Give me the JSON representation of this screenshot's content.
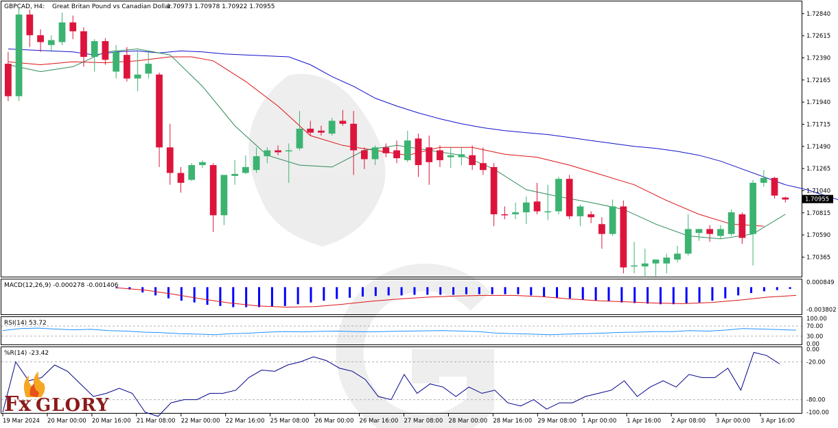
{
  "header": {
    "symbol": "GBPCAD, H4:",
    "description": "Great Britan Pound vs Canadian Dollar",
    "ohlc": "1.70973 1.70978 1.70922 1.70955"
  },
  "logo": {
    "text_fx": "Fx",
    "text_glory": "GLORY"
  },
  "colors": {
    "bull": "#3cb371",
    "bear": "#dc143c",
    "ma_slow": "#1010cc",
    "ma_mid": "#dd1111",
    "ma_fast": "#2e8b57",
    "macd_hist": "#0000ff",
    "macd_signal": "#dd1111",
    "rsi": "#1e90ff",
    "wpr": "#00008b",
    "price_tag_bg": "#000000",
    "grid": "#b0b0b0"
  },
  "chart_data": [
    {
      "type": "candlestick",
      "name": "price",
      "title": "GBPCAD, H4",
      "y_ticks": [
        "1.72840",
        "1.72615",
        "1.72390",
        "1.72165",
        "1.71940",
        "1.71715",
        "1.71490",
        "1.71265",
        "1.71040",
        "1.70815",
        "1.70590",
        "1.70365"
      ],
      "ylim": [
        1.7018,
        1.7295
      ],
      "current_price": "1.70955",
      "x_tick_labels": [
        "19 Mar 2024",
        "20 Mar 00:00",
        "20 Mar 16:00",
        "21 Mar 08:00",
        "22 Mar 00:00",
        "22 Mar 16:00",
        "25 Mar 08:00",
        "26 Mar 00:00",
        "26 Mar 16:00",
        "27 Mar 08:00",
        "28 Mar 00:00",
        "28 Mar 16:00",
        "29 Mar 08:00",
        "1 Apr 00:00",
        "1 Apr 16:00",
        "2 Apr 08:00",
        "3 Apr 00:00",
        "3 Apr 16:00"
      ],
      "candles": [
        [
          1.7233,
          1.7245,
          1.7195,
          1.72
        ],
        [
          1.72,
          1.729,
          1.7195,
          1.7283
        ],
        [
          1.7283,
          1.7288,
          1.725,
          1.7262
        ],
        [
          1.7262,
          1.7268,
          1.7245,
          1.7255
        ],
        [
          1.7252,
          1.7262,
          1.7245,
          1.7257
        ],
        [
          1.7255,
          1.7285,
          1.7252,
          1.7275
        ],
        [
          1.7275,
          1.7282,
          1.7258,
          1.7266
        ],
        [
          1.7266,
          1.727,
          1.723,
          1.724
        ],
        [
          1.724,
          1.7258,
          1.7225,
          1.7256
        ],
        [
          1.7256,
          1.7259,
          1.7232,
          1.7237
        ],
        [
          1.7225,
          1.7252,
          1.7218,
          1.7245
        ],
        [
          1.7242,
          1.725,
          1.7215,
          1.7218
        ],
        [
          1.7218,
          1.7245,
          1.7205,
          1.7222
        ],
        [
          1.7223,
          1.7245,
          1.7218,
          1.7233
        ],
        [
          1.7222,
          1.7224,
          1.7128,
          1.7148
        ],
        [
          1.7148,
          1.7172,
          1.711,
          1.7122
        ],
        [
          1.7122,
          1.7128,
          1.7102,
          1.7112
        ],
        [
          1.7115,
          1.7132,
          1.7114,
          1.713
        ],
        [
          1.713,
          1.7135,
          1.7127,
          1.7133
        ],
        [
          1.713,
          1.7132,
          1.7062,
          1.7079
        ],
        [
          1.7079,
          1.712,
          1.7069,
          1.712
        ],
        [
          1.7119,
          1.7135,
          1.711,
          1.7121
        ],
        [
          1.7122,
          1.714,
          1.7121,
          1.7128
        ],
        [
          1.7125,
          1.7148,
          1.7122,
          1.7139
        ],
        [
          1.7139,
          1.7148,
          1.7132,
          1.7145
        ],
        [
          1.7145,
          1.715,
          1.714,
          1.7143
        ],
        [
          1.7145,
          1.7152,
          1.7112,
          1.7145
        ],
        [
          1.7147,
          1.7185,
          1.7145,
          1.7167
        ],
        [
          1.7167,
          1.7175,
          1.716,
          1.7163
        ],
        [
          1.7165,
          1.717,
          1.716,
          1.7163
        ],
        [
          1.7162,
          1.7178,
          1.716,
          1.7175
        ],
        [
          1.7175,
          1.7186,
          1.717,
          1.7172
        ],
        [
          1.7172,
          1.7185,
          1.712,
          1.7145
        ],
        [
          1.7145,
          1.7148,
          1.7126,
          1.7136
        ],
        [
          1.7136,
          1.715,
          1.713,
          1.7148
        ],
        [
          1.7148,
          1.7152,
          1.7138,
          1.7142
        ],
        [
          1.7145,
          1.7155,
          1.7132,
          1.7137
        ],
        [
          1.7135,
          1.7165,
          1.7133,
          1.7155
        ],
        [
          1.7157,
          1.7162,
          1.7118,
          1.713
        ],
        [
          1.7148,
          1.716,
          1.711,
          1.7133
        ],
        [
          1.7145,
          1.715,
          1.7128,
          1.7135
        ],
        [
          1.7138,
          1.7148,
          1.7127,
          1.714
        ],
        [
          1.7138,
          1.7148,
          1.713,
          1.7141
        ],
        [
          1.714,
          1.715,
          1.7125,
          1.713
        ],
        [
          1.7132,
          1.7148,
          1.712,
          1.7125
        ],
        [
          1.7128,
          1.7132,
          1.7068,
          1.708
        ],
        [
          1.708,
          1.7088,
          1.7075,
          1.7079
        ],
        [
          1.708,
          1.7092,
          1.7075,
          1.7082
        ],
        [
          1.7082,
          1.7098,
          1.707,
          1.7092
        ],
        [
          1.7093,
          1.7112,
          1.708,
          1.7083
        ],
        [
          1.7082,
          1.711,
          1.7074,
          1.7083
        ],
        [
          1.7083,
          1.7118,
          1.708,
          1.7116
        ],
        [
          1.7116,
          1.712,
          1.7075,
          1.7078
        ],
        [
          1.7078,
          1.709,
          1.7068,
          1.7088
        ],
        [
          1.708,
          1.7083,
          1.7071,
          1.7077
        ],
        [
          1.707,
          1.7077,
          1.7045,
          1.706
        ],
        [
          1.706,
          1.7095,
          1.7058,
          1.7088
        ],
        [
          1.7088,
          1.7094,
          1.702,
          1.7026
        ],
        [
          1.7027,
          1.7052,
          1.702,
          1.7028
        ],
        [
          1.7027,
          1.7045,
          1.7016,
          1.703
        ],
        [
          1.703,
          1.7033,
          1.7017,
          1.7034
        ],
        [
          1.703,
          1.704,
          1.702,
          1.7036
        ],
        [
          1.7034,
          1.7048,
          1.7031,
          1.704
        ],
        [
          1.704,
          1.708,
          1.7038,
          1.7065
        ],
        [
          1.7061,
          1.7065,
          1.7053,
          1.7065
        ],
        [
          1.7065,
          1.7069,
          1.7052,
          1.706
        ],
        [
          1.7058,
          1.7069,
          1.7055,
          1.7065
        ],
        [
          1.706,
          1.7085,
          1.7058,
          1.7082
        ],
        [
          1.708,
          1.7082,
          1.705,
          1.7056
        ],
        [
          1.706,
          1.7115,
          1.7028,
          1.7112
        ],
        [
          1.7112,
          1.7125,
          1.7108,
          1.7117
        ],
        [
          1.7117,
          1.7118,
          1.7096,
          1.7099
        ],
        [
          1.7097,
          1.7098,
          1.7092,
          1.7095
        ]
      ],
      "ma_slow": [
        1.7248,
        1.7247,
        1.7246,
        1.7245,
        1.7242,
        1.7245,
        1.7246,
        1.7244,
        1.7246,
        1.7245,
        1.7243,
        1.7242,
        1.7241,
        1.724,
        1.7232,
        1.722,
        1.721,
        1.7198,
        1.719,
        1.7183,
        1.7177,
        1.7172,
        1.7168,
        1.7165,
        1.7163,
        1.7161,
        1.7158,
        1.7155,
        1.7152,
        1.7149,
        1.7147,
        1.7144,
        1.714,
        1.7134,
        1.7126,
        1.7118,
        1.711,
        1.7105,
        1.7098,
        1.7091,
        1.7086,
        1.7081
      ],
      "ma_slow_x": [
        0,
        2,
        4,
        6,
        8,
        10,
        12,
        14,
        16,
        18,
        20,
        22,
        24,
        26,
        28,
        30,
        32,
        34,
        36,
        38,
        40,
        42,
        44,
        46,
        48,
        50,
        52,
        54,
        56,
        58,
        60,
        62,
        64,
        66,
        68,
        70,
        72,
        74,
        76,
        78,
        80,
        82
      ],
      "ma_mid": [
        1.7235,
        1.7232,
        1.7235,
        1.7234,
        1.7236,
        1.724,
        1.724,
        1.7236,
        1.7215,
        1.719,
        1.716,
        1.715,
        1.7145,
        1.714,
        1.7148,
        1.7148,
        1.7141,
        1.7138,
        1.713,
        1.712,
        1.711,
        1.7094,
        1.708,
        1.707,
        1.7068
      ],
      "ma_mid_x": [
        0,
        3,
        6,
        9,
        12,
        15,
        17,
        19,
        22,
        25,
        28,
        31,
        34,
        37,
        40,
        43,
        46,
        49,
        52,
        55,
        58,
        61,
        64,
        67,
        70
      ],
      "ma_fast": [
        1.7232,
        1.7225,
        1.723,
        1.7245,
        1.7248,
        1.7242,
        1.721,
        1.717,
        1.714,
        1.713,
        1.7128,
        1.7145,
        1.715,
        1.7145,
        1.714,
        1.7126,
        1.7105,
        1.7098,
        1.7092,
        1.7085,
        1.707,
        1.7058,
        1.7055,
        1.706,
        1.708
      ],
      "ma_fast_x": [
        0,
        3,
        6,
        9,
        12,
        15,
        18,
        21,
        24,
        27,
        30,
        33,
        36,
        39,
        42,
        45,
        48,
        51,
        54,
        57,
        60,
        63,
        66,
        69,
        72
      ]
    },
    {
      "type": "bar",
      "name": "MACD",
      "title": "MACD(12,26,9) -0.000278 -0.001406",
      "y_ticks": [
        "0.000849",
        "-0.003802"
      ],
      "ylim": [
        -0.0045,
        0.0012
      ],
      "histogram": [
        -0.0002,
        -0.0004,
        -0.0009,
        -0.0014,
        -0.0019,
        -0.0023,
        -0.0026,
        -0.003,
        -0.0032,
        -0.0034,
        -0.0034,
        -0.0034,
        -0.0033,
        -0.0032,
        -0.0029,
        -0.0026,
        -0.0023,
        -0.002,
        -0.0018,
        -0.0016,
        -0.0015,
        -0.0014,
        -0.0014,
        -0.0013,
        -0.0013,
        -0.0013,
        -0.0013,
        -0.0012,
        -0.0012,
        -0.0012,
        -0.0012,
        -0.0012,
        -0.0014,
        -0.0016,
        -0.0018,
        -0.0019,
        -0.0021,
        -0.0023,
        -0.0024,
        -0.0026,
        -0.0027,
        -0.0028,
        -0.0029,
        -0.0029,
        -0.0028,
        -0.0026,
        -0.0023,
        -0.0019,
        -0.0014,
        -0.001,
        -0.0007,
        -0.0005,
        -0.0003
      ],
      "signal": [
        -0.0001,
        -0.0005,
        -0.0012,
        -0.002,
        -0.0027,
        -0.0032,
        -0.0034,
        -0.0033,
        -0.0029,
        -0.0024,
        -0.002,
        -0.0017,
        -0.0015,
        -0.0014,
        -0.0014,
        -0.0016,
        -0.002,
        -0.0023,
        -0.0025,
        -0.0027,
        -0.0028,
        -0.0026,
        -0.0022,
        -0.0017,
        -0.0014
      ]
    },
    {
      "type": "line",
      "name": "RSI",
      "title": "RSI(14) 53.72",
      "y_ticks": [
        "100.00",
        "70.00",
        "30.00",
        "0.00"
      ],
      "ylim": [
        0,
        100
      ],
      "values": [
        52,
        60,
        62,
        58,
        55,
        57,
        52,
        50,
        46,
        44,
        40,
        38,
        36,
        40,
        42,
        46,
        48,
        47,
        49,
        50,
        48,
        47,
        49,
        50,
        51,
        52,
        50,
        48,
        42,
        40,
        38,
        36,
        38,
        40,
        42,
        45,
        46,
        48,
        48,
        52,
        50,
        54,
        60,
        58,
        56,
        53.72
      ]
    },
    {
      "type": "line",
      "name": "%R",
      "title": "%R(14) -23.42",
      "y_ticks": [
        "0.00",
        "-20.00",
        "-80.00",
        "-100.00"
      ],
      "ylim": [
        -100,
        0
      ],
      "values": [
        -100,
        -20,
        -50,
        -45,
        -25,
        -35,
        -55,
        -75,
        -70,
        -62,
        -70,
        -100,
        -110,
        -85,
        -80,
        -80,
        -70,
        -70,
        -65,
        -45,
        -33,
        -35,
        -25,
        -20,
        -12,
        -18,
        -30,
        -35,
        -48,
        -75,
        -80,
        -40,
        -70,
        -55,
        -60,
        -75,
        -60,
        -70,
        -65,
        -85,
        -90,
        -80,
        -95,
        -85,
        -85,
        -75,
        -70,
        -65,
        -50,
        -75,
        -60,
        -50,
        -60,
        -40,
        -45,
        -45,
        -30,
        -65,
        -5,
        -10,
        -23.42
      ]
    }
  ]
}
